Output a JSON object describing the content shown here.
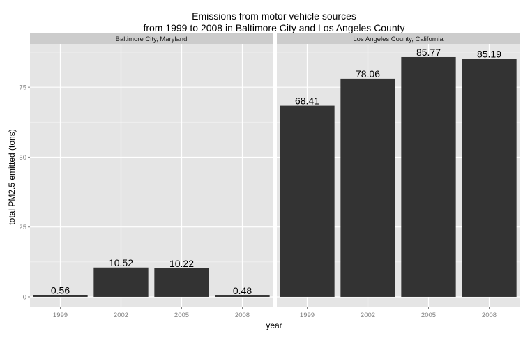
{
  "chart_data": {
    "type": "bar",
    "title_lines": [
      "Emissions from motor vehicle sources",
      "from 1999 to 2008 in Baltimore City and Los Angeles County"
    ],
    "xlabel": "year",
    "ylabel": "total PM2.5 emitted (tons)",
    "categories": [
      "1999",
      "2002",
      "2005",
      "2008"
    ],
    "ylim": [
      -3.5,
      90.5
    ],
    "yticks": [
      0,
      25,
      50,
      75
    ],
    "grid": true,
    "facets": [
      {
        "label": "Baltimore City, Maryland",
        "values": [
          0.56,
          10.52,
          10.22,
          0.48
        ],
        "labels": [
          "0.56",
          "10.52",
          "10.22",
          "0.48"
        ]
      },
      {
        "label": "Los Angeles County, California",
        "values": [
          68.41,
          78.06,
          85.77,
          85.19
        ],
        "labels": [
          "68.41",
          "78.06",
          "85.77",
          "85.19"
        ]
      }
    ],
    "colors": {
      "bar": "#333333",
      "panel_bg": "#e5e5e5",
      "strip_bg": "#cccccc",
      "grid_major": "#ffffff",
      "grid_minor": "#f2f2f2",
      "tick_text": "#7f7f7f",
      "text": "#000000"
    }
  }
}
